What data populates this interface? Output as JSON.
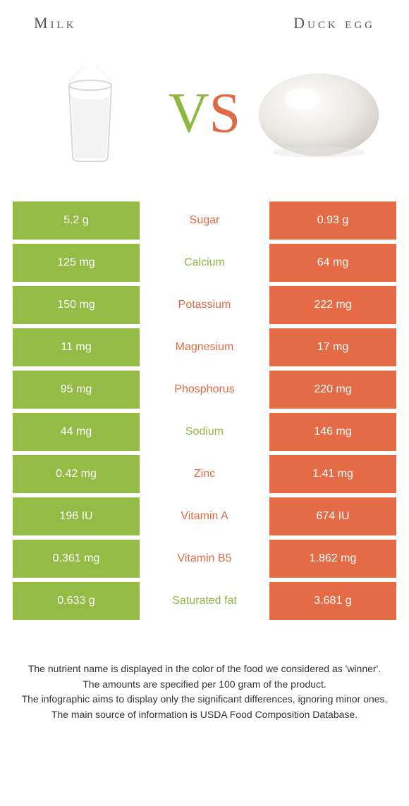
{
  "leftTitle": "Milk",
  "rightTitle": "Duck egg",
  "vs": {
    "v": "V",
    "s": "S"
  },
  "colors": {
    "left": "#93bb46",
    "right": "#e56b47",
    "leftText": "#8fb842",
    "rightText": "#e06a44"
  },
  "rows": [
    {
      "left": "5.2 g",
      "label": "Sugar",
      "right": "0.93 g",
      "winner": "right"
    },
    {
      "left": "125 mg",
      "label": "Calcium",
      "right": "64 mg",
      "winner": "left"
    },
    {
      "left": "150 mg",
      "label": "Potassium",
      "right": "222 mg",
      "winner": "right"
    },
    {
      "left": "11 mg",
      "label": "Magnesium",
      "right": "17 mg",
      "winner": "right"
    },
    {
      "left": "95 mg",
      "label": "Phosphorus",
      "right": "220 mg",
      "winner": "right"
    },
    {
      "left": "44 mg",
      "label": "Sodium",
      "right": "146 mg",
      "winner": "left"
    },
    {
      "left": "0.42 mg",
      "label": "Zinc",
      "right": "1.41 mg",
      "winner": "right"
    },
    {
      "left": "196 IU",
      "label": "Vitamin A",
      "right": "674 IU",
      "winner": "right"
    },
    {
      "left": "0.361 mg",
      "label": "Vitamin B5",
      "right": "1.862 mg",
      "winner": "right"
    },
    {
      "left": "0.633 g",
      "label": "Saturated fat",
      "right": "3.681 g",
      "winner": "left"
    }
  ],
  "footer": [
    "The nutrient name is displayed in the color of the food we considered as 'winner'.",
    "The amounts are specified per 100 gram of the product.",
    "The infographic aims to display only the significant differences, ignoring minor ones.",
    "The main source of information is USDA Food Composition Database."
  ]
}
